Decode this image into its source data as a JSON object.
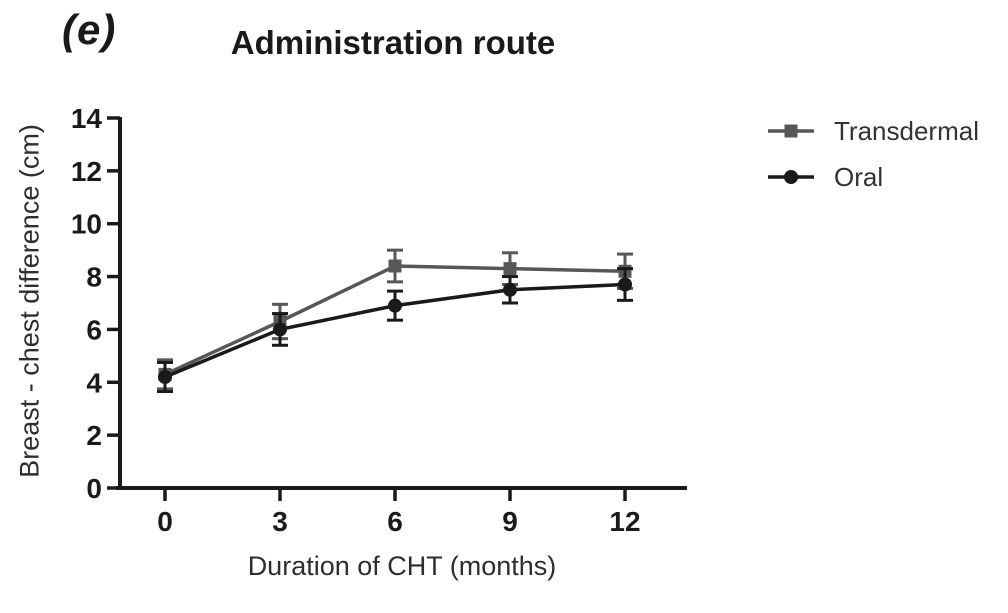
{
  "chart_data": {
    "type": "line",
    "panel_label": "(e)",
    "title": "Administration route",
    "xlabel": "Duration of CHT (months)",
    "ylabel": "Breast - chest difference (cm)",
    "x": [
      0,
      3,
      6,
      9,
      12
    ],
    "xtick_labels": [
      "0",
      "3",
      "6",
      "9",
      "12"
    ],
    "yticks": [
      0,
      2,
      4,
      6,
      8,
      10,
      12,
      14
    ],
    "ytick_labels": [
      "0",
      "2",
      "4",
      "6",
      "8",
      "10",
      "12",
      "14"
    ],
    "ylim": [
      0,
      14
    ],
    "xlim": [
      0,
      13.6
    ],
    "grid": false,
    "legend_position": "right-top",
    "axis_color": "#1a1a1a",
    "error_bars": "symmetric, cap style",
    "series": [
      {
        "name": "Transdermal",
        "marker": "square",
        "color": "#575757",
        "values": [
          4.3,
          6.3,
          8.4,
          8.3,
          8.2
        ],
        "errors": [
          0.55,
          0.65,
          0.6,
          0.6,
          0.65
        ]
      },
      {
        "name": "Oral",
        "marker": "circle",
        "color": "#1a1a1a",
        "values": [
          4.2,
          6.0,
          6.9,
          7.5,
          7.7
        ],
        "errors": [
          0.55,
          0.6,
          0.55,
          0.5,
          0.6
        ]
      }
    ]
  }
}
